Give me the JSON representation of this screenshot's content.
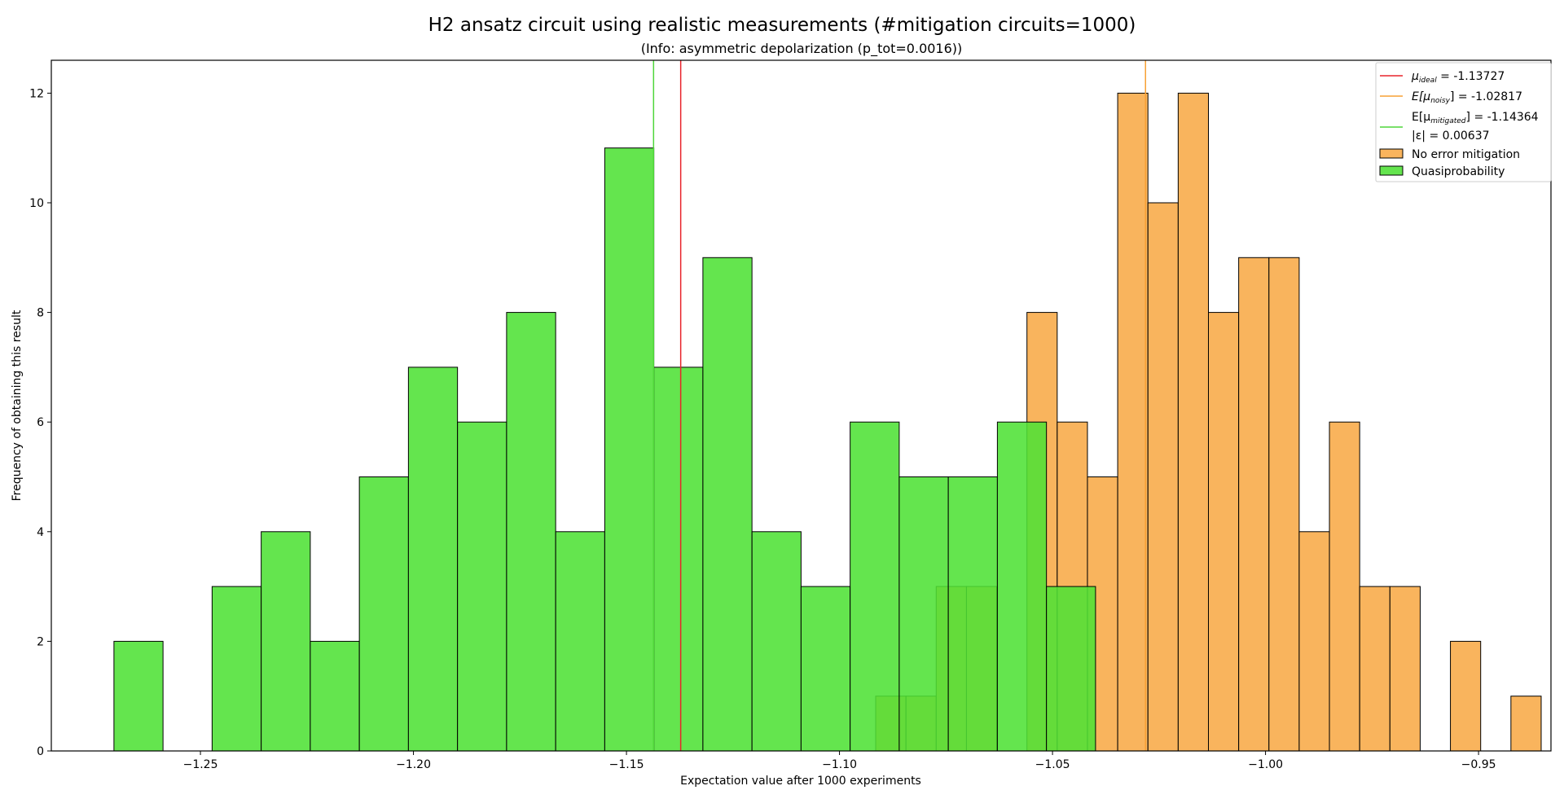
{
  "chart_data": {
    "type": "histogram",
    "title": "H2 ansatz circuit using realistic measurements (#mitigation circuits=1000)",
    "subtitle": "(Info: asymmetric depolarization (p_tot=0.0016))",
    "xlabel": "Expectation value after 1000 experiments",
    "ylabel": "Frequency of obtaining this result",
    "xlim": [
      -1.285,
      -0.933
    ],
    "ylim": [
      0,
      12.6
    ],
    "xticks": [
      {
        "value": -1.25,
        "label": "−1.25"
      },
      {
        "value": -1.2,
        "label": "−1.20"
      },
      {
        "value": -1.15,
        "label": "−1.15"
      },
      {
        "value": -1.1,
        "label": "−1.10"
      },
      {
        "value": -1.05,
        "label": "−1.05"
      },
      {
        "value": -1.0,
        "label": "−1.00"
      },
      {
        "value": -0.95,
        "label": "−0.95"
      }
    ],
    "yticks": [
      0,
      2,
      4,
      6,
      8,
      10,
      12
    ],
    "lines": [
      {
        "name": "ideal",
        "x": -1.13727,
        "color": "#e8242b",
        "legend_prefix": "μ",
        "legend_sub": "ideal",
        "legend_suffix": " = -1.13727"
      },
      {
        "name": "noisy",
        "x": -1.02817,
        "color": "#f7a135",
        "legend_prefix": "E[μ",
        "legend_sub": "noisy",
        "legend_suffix": "] = -1.02817"
      },
      {
        "name": "mitigated",
        "x": -1.14364,
        "color": "#4fd63a",
        "legend_prefix": "E[μ",
        "legend_sub": "mitigated",
        "legend_suffix": "] = -1.14364",
        "legend_line2": "|ε| = 0.00637"
      }
    ],
    "series": [
      {
        "name": "No error mitigation",
        "color": "#f7a135",
        "alpha": 0.8,
        "bin_start": -1.0915,
        "bin_width": 0.0071,
        "values": [
          1,
          1,
          3,
          3,
          0,
          8,
          6,
          5,
          12,
          10,
          12,
          8,
          9,
          9,
          4,
          6,
          3,
          3,
          0,
          2,
          0,
          1
        ]
      },
      {
        "name": "Quasiprobability",
        "color": "#4fe136",
        "alpha": 0.88,
        "bin_start": -1.2703,
        "bin_width": 0.01152,
        "values": [
          2,
          0,
          3,
          4,
          2,
          5,
          7,
          6,
          8,
          4,
          11,
          7,
          9,
          4,
          3,
          6,
          5,
          5,
          6,
          3
        ]
      }
    ]
  }
}
